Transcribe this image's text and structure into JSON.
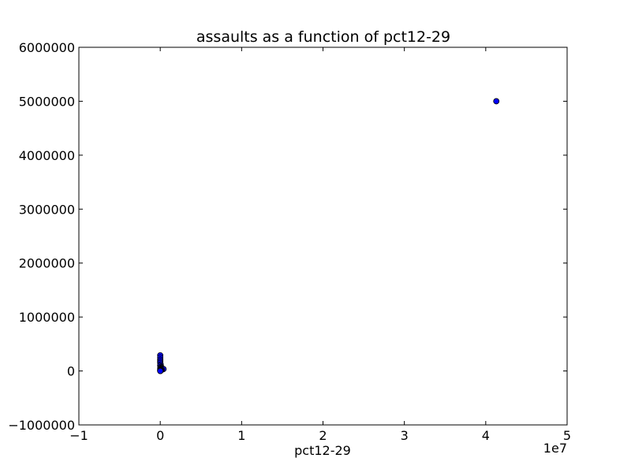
{
  "chart_data": {
    "type": "scatter",
    "title": "assaults as a function of pct12-29",
    "xlabel": "pct12-29",
    "ylabel": "",
    "x_offset_label": "1e7",
    "xlim": [
      -10000000,
      50000000
    ],
    "ylim": [
      -1000000,
      6000000
    ],
    "x_ticks": [
      -10000000,
      0,
      10000000,
      20000000,
      30000000,
      40000000,
      50000000
    ],
    "x_tick_labels": [
      "−1",
      "0",
      "1",
      "2",
      "3",
      "4",
      "5"
    ],
    "y_ticks": [
      -1000000,
      0,
      1000000,
      2000000,
      3000000,
      4000000,
      5000000,
      6000000
    ],
    "y_tick_labels": [
      "−1000000",
      "0",
      "1000000",
      "2000000",
      "3000000",
      "4000000",
      "5000000",
      "6000000"
    ],
    "grid": false,
    "marker_color": "#0000ff",
    "marker_edge_color": "#000000",
    "series": [
      {
        "points": [
          [
            41300000,
            5000000
          ],
          [
            0,
            290000
          ],
          [
            0,
            250000
          ],
          [
            0,
            210000
          ],
          [
            0,
            180000
          ],
          [
            0,
            150000
          ],
          [
            50000,
            120000
          ],
          [
            0,
            100000
          ],
          [
            100000,
            80000
          ],
          [
            30000,
            70000
          ],
          [
            150000,
            60000
          ],
          [
            0,
            50000
          ],
          [
            250000,
            45000
          ],
          [
            80000,
            40000
          ],
          [
            400000,
            35000
          ],
          [
            20000,
            30000
          ],
          [
            200000,
            25000
          ],
          [
            0,
            20000
          ],
          [
            120000,
            15000
          ],
          [
            60000,
            10000
          ],
          [
            0,
            5000
          ],
          [
            30000,
            2000
          ],
          [
            0,
            0
          ]
        ]
      }
    ]
  }
}
